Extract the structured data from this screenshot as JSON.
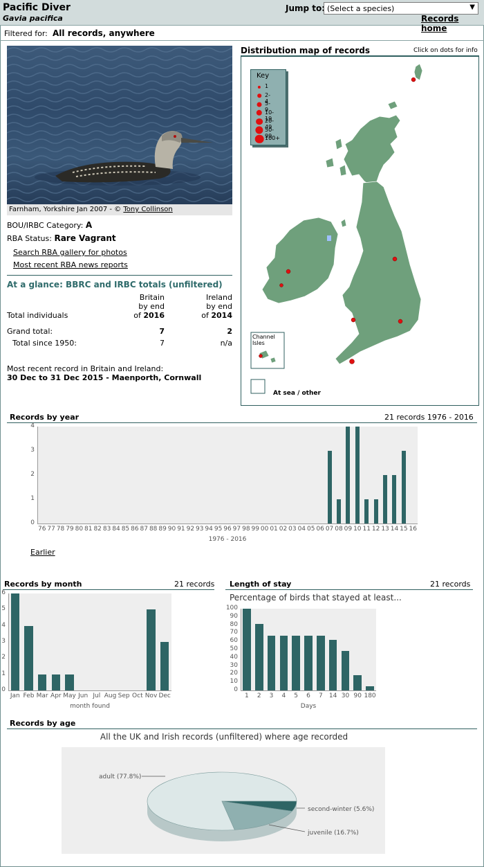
{
  "header": {
    "species_name": "Pacific Diver",
    "species_latin": "Gavia pacifica",
    "jump_label": "Jump to:",
    "jump_select_value": "(Select a species)",
    "records_home": "Records home"
  },
  "filter": {
    "label": "Filtered for:",
    "value": "All records, anywhere"
  },
  "photo": {
    "caption_text": "Farnham, Yorkshire Jan 2007 - ©",
    "caption_author": "Tony Collinson"
  },
  "status": {
    "category_label": "BOU/IRBC Category:",
    "category_value": "A",
    "rba_label": "RBA Status:",
    "rba_value": "Rare Vagrant",
    "links": [
      "Search RBA gallery for photos",
      "Most recent RBA news reports"
    ]
  },
  "glance": {
    "title": "At a glance: BBRC and IRBC totals (unfiltered)",
    "col_britain": [
      "Britain",
      "by end",
      "of"
    ],
    "britain_year": "2016",
    "col_ireland": [
      "Ireland",
      "by end",
      "of"
    ],
    "ireland_year": "2014",
    "row_label_individuals": "Total individuals",
    "grand_total_label": "Grand total:",
    "grand_total_britain": "7",
    "grand_total_ireland": "2",
    "since1950_label": "Total since 1950:",
    "since1950_britain": "7",
    "since1950_ireland": "n/a",
    "recent_label": "Most recent record in Britain and Ireland:",
    "recent_value": "30 Dec to 31 Dec 2015 - Maenporth, Cornwall"
  },
  "map": {
    "title": "Distribution map of records",
    "hint": "Click on dots for info",
    "key_title": "Key",
    "key_items": [
      "1",
      "2-4",
      "5-9",
      "10-19",
      "20-49",
      "50-99",
      "100+"
    ],
    "channel_isles": "Channel\nIsles",
    "at_sea": "At sea / other",
    "land_color": "#6fa07c",
    "dot_color": "#e01010"
  },
  "by_year": {
    "title": "Records by year",
    "summary": "21 records 1976 - 2016",
    "earlier_link": "Earlier",
    "xlabel": "1976 - 2016"
  },
  "by_month": {
    "title": "Records by month",
    "summary": "21 records",
    "xlabel": "month found"
  },
  "stay": {
    "title": "Length of stay",
    "summary": "21 records",
    "subtitle": "Percentage of birds that stayed at least...",
    "xlabel": "Days"
  },
  "by_age": {
    "title": "Records by age",
    "subtitle": "All the UK and Irish records (unfiltered) where age recorded"
  },
  "chart_data": [
    {
      "type": "bar",
      "title": "Records by year",
      "xlabel": "1976 - 2016",
      "categories": [
        "76",
        "77",
        "78",
        "79",
        "80",
        "81",
        "82",
        "83",
        "84",
        "85",
        "86",
        "87",
        "88",
        "89",
        "90",
        "91",
        "92",
        "93",
        "94",
        "95",
        "96",
        "97",
        "98",
        "99",
        "00",
        "01",
        "02",
        "03",
        "04",
        "05",
        "06",
        "07",
        "08",
        "09",
        "10",
        "11",
        "12",
        "13",
        "14",
        "15",
        "16"
      ],
      "values": [
        0,
        0,
        0,
        0,
        0,
        0,
        0,
        0,
        0,
        0,
        0,
        0,
        0,
        0,
        0,
        0,
        0,
        0,
        0,
        0,
        0,
        0,
        0,
        0,
        0,
        0,
        0,
        0,
        0,
        0,
        0,
        3,
        1,
        4,
        4,
        1,
        1,
        2,
        2,
        3,
        0
      ],
      "ylim": [
        0,
        4
      ],
      "yticks": [
        "0",
        "1",
        "2",
        "3",
        "4"
      ]
    },
    {
      "type": "bar",
      "title": "Records by month",
      "xlabel": "month found",
      "categories": [
        "Jan",
        "Feb",
        "Mar",
        "Apr",
        "May",
        "Jun",
        "Jul",
        "Aug",
        "Sep",
        "Oct",
        "Nov",
        "Dec"
      ],
      "values": [
        6,
        4,
        1,
        1,
        1,
        0,
        0,
        0,
        0,
        0,
        5,
        3
      ],
      "ylim": [
        0,
        6
      ],
      "yticks": [
        "0",
        "1",
        "2",
        "3",
        "4",
        "5",
        "6"
      ]
    },
    {
      "type": "bar",
      "title": "Length of stay",
      "xlabel": "Days",
      "categories": [
        "1",
        "2",
        "3",
        "4",
        "5",
        "6",
        "7",
        "14",
        "30",
        "90",
        "180"
      ],
      "values": [
        100,
        81,
        67,
        67,
        67,
        67,
        67,
        62,
        48,
        19,
        5
      ],
      "ylim": [
        0,
        100
      ],
      "yticks": [
        "0",
        "10",
        "20",
        "30",
        "40",
        "50",
        "60",
        "70",
        "80",
        "90",
        "100"
      ]
    },
    {
      "type": "pie",
      "title": "Records by age",
      "labels": [
        "adult (77.8%)",
        "second-winter (5.6%)",
        "juvenile (16.7%)"
      ],
      "values": [
        77.8,
        5.6,
        16.7
      ],
      "colors": [
        "#dde8e8",
        "#2e6565",
        "#8fb0b0"
      ]
    }
  ]
}
